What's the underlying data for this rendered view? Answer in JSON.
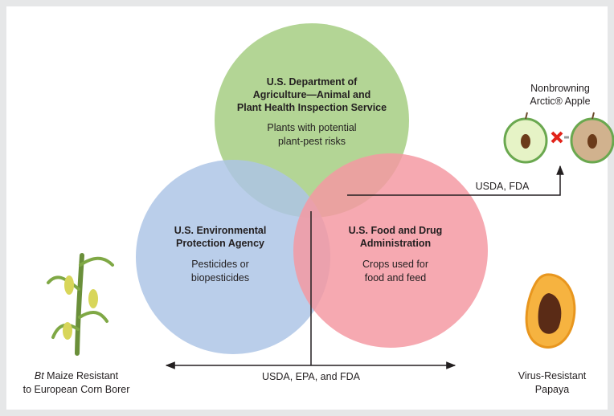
{
  "agencies": [
    {
      "name": [
        "U.S. Department of",
        "Agriculture—Animal and",
        "Plant Health Inspection Service"
      ],
      "scope": [
        "Plants with potential",
        "plant-pest risks"
      ]
    },
    {
      "name": [
        "U.S. Environmental",
        "Protection Agency"
      ],
      "scope": [
        "Pesticides or",
        "biopesticides"
      ]
    },
    {
      "name": [
        "U.S. Food and Drug",
        "Administration"
      ],
      "scope": [
        "Crops used for",
        "food and feed"
      ]
    }
  ],
  "arrows": {
    "upper": "USDA, FDA",
    "lower": "USDA, EPA, and FDA"
  },
  "examples": {
    "apple": [
      "Nonbrowning",
      "Arctic® Apple"
    ],
    "maize": {
      "italic": "Bt",
      "rest": " Maize Resistant",
      "line2": "to European Corn Borer"
    },
    "papaya": [
      "Virus-Resistant",
      "Papaya"
    ]
  }
}
